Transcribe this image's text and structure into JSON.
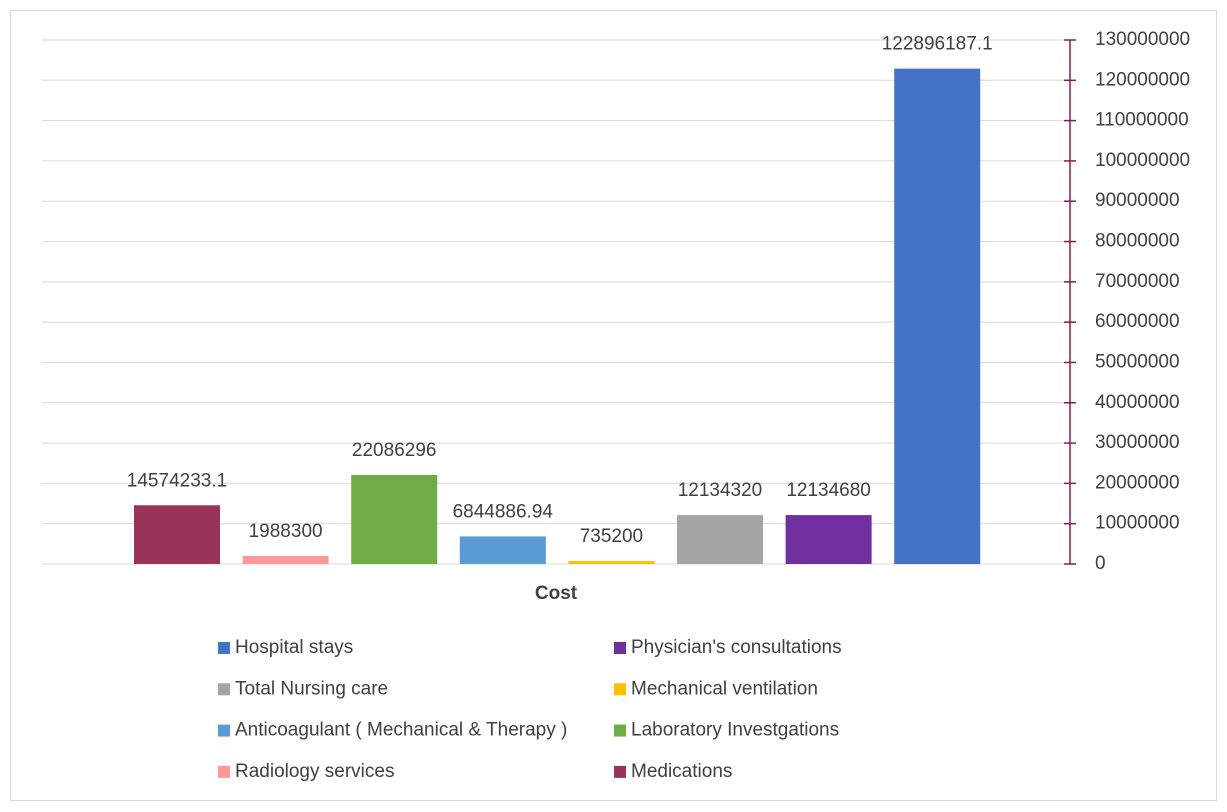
{
  "chart_data": {
    "type": "bar",
    "categories": [
      "Cost"
    ],
    "series": [
      {
        "name": "Medications",
        "color": "#993359",
        "values": [
          14574233.1
        ]
      },
      {
        "name": "Radiology services",
        "color": "#ff9999",
        "values": [
          1988300
        ]
      },
      {
        "name": "Laboratory Investgations",
        "color": "#70ad47",
        "values": [
          22086296
        ]
      },
      {
        "name": "Anticoagulant ( Mechanical & Therapy )",
        "color": "#5b9bd5",
        "values": [
          6844886.94
        ]
      },
      {
        "name": "Mechanical ventilation",
        "color": "#ffc000",
        "values": [
          735200
        ]
      },
      {
        "name": "Total Nursing care",
        "color": "#a5a5a5",
        "values": [
          12134320
        ]
      },
      {
        "name": "Physician's consultations",
        "color": "#7030a0",
        "values": [
          12134680
        ]
      },
      {
        "name": "Hospital stays",
        "color": "#4472c4",
        "values": [
          122896187.1
        ]
      }
    ],
    "ylim": [
      0,
      130000000
    ],
    "yticks": [
      0,
      10000000,
      20000000,
      30000000,
      40000000,
      50000000,
      60000000,
      70000000,
      80000000,
      90000000,
      100000000,
      110000000,
      120000000,
      130000000
    ],
    "grid": true,
    "axis_color": "#8b1a4a"
  }
}
